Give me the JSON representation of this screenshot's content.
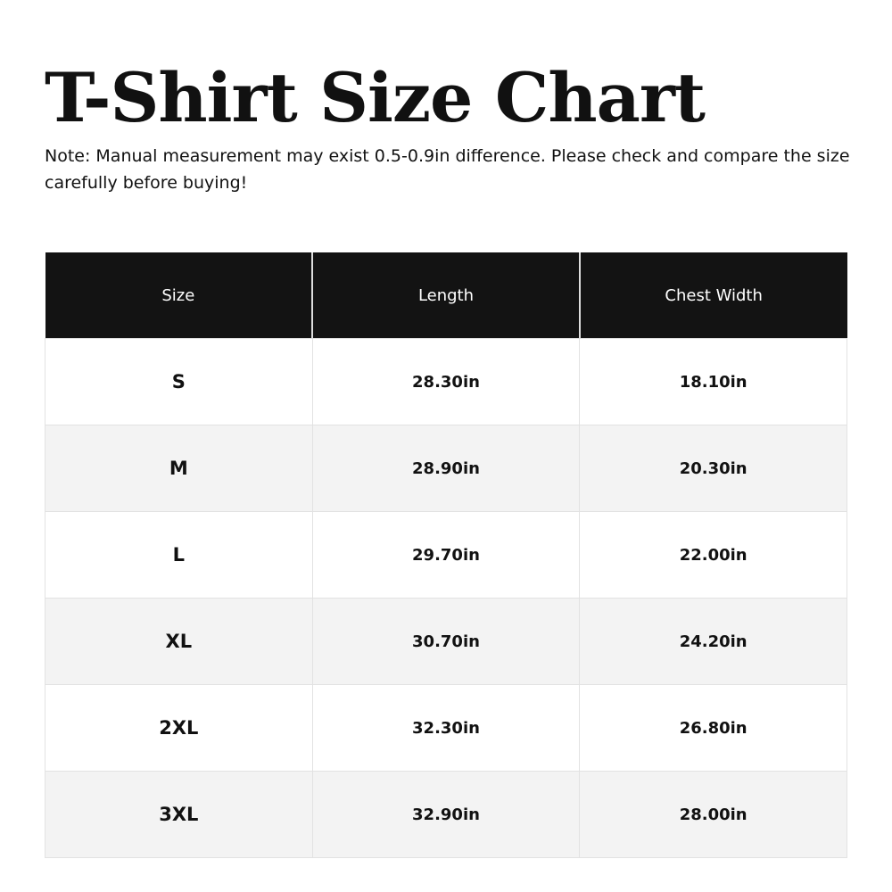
{
  "title": "T-Shirt Size Chart",
  "note": "Note: Manual measurement may exist 0.5-0.9in difference. Please check and compare the size carefully before buying!",
  "table": {
    "headers": [
      "Size",
      "Length",
      "Chest Width"
    ],
    "rows": [
      [
        "S",
        "28.30in",
        "18.10in"
      ],
      [
        "M",
        "28.90in",
        "20.30in"
      ],
      [
        "L",
        "29.70in",
        "22.00in"
      ],
      [
        "XL",
        "30.70in",
        "24.20in"
      ],
      [
        "2XL",
        "32.30in",
        "26.80in"
      ],
      [
        "3XL",
        "32.90in",
        "28.00in"
      ]
    ]
  }
}
